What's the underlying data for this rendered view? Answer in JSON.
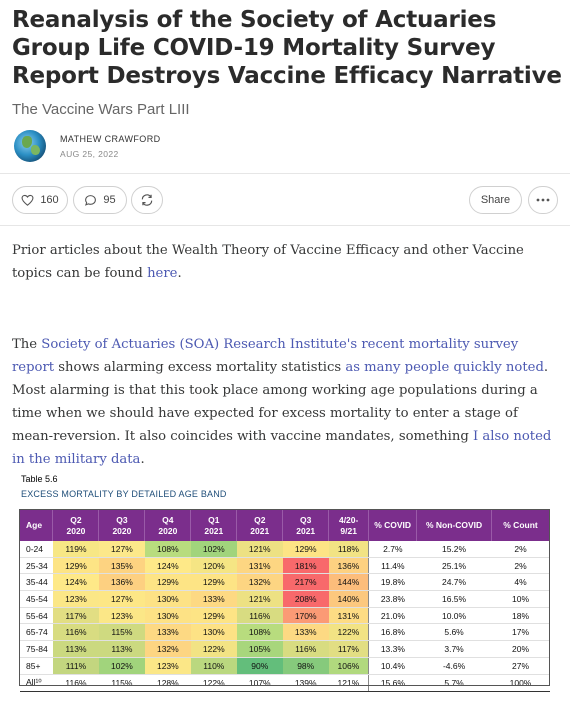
{
  "article": {
    "title": "Reanalysis of the Society of Actuaries Group Life COVID-19 Mortality Survey Report Destroys Vaccine Efficacy Narrative",
    "subtitle": "The Vaccine Wars Part LIII",
    "author": "MATHEW CRAWFORD",
    "date": "AUG 25, 2022"
  },
  "actions": {
    "likes": "160",
    "comments": "95",
    "share_label": "Share"
  },
  "paragraph1": {
    "text_before": "Prior articles about the Wealth Theory of Vaccine Efficacy and other Vaccine topics can be found ",
    "link": "here",
    "text_after": "."
  },
  "paragraph2": {
    "t1": "The ",
    "link1": "Society of Actuaries (SOA) Research Institute's recent mortality survey report",
    "t2": " shows alarming excess mortality statistics ",
    "link2": "as many people quickly noted",
    "t3": ". Most alarming is that this took place among working age populations during a time when we should have expected for excess mortality to enter a stage of mean-reversion. It also coincides with vaccine mandates, something ",
    "link3": "I also noted in the military data",
    "t4": "."
  },
  "table": {
    "caption": "Table 5.6",
    "subcaption": "EXCESS MORTALITY BY DETAILED AGE BAND",
    "headers": [
      "Age",
      "Q2\n2020",
      "Q3\n2020",
      "Q4\n2020",
      "Q1\n2021",
      "Q2\n2021",
      "Q3\n2021",
      "4/20-\n9/21",
      "% COVID",
      "% Non-COVID",
      "% Count"
    ],
    "rows": [
      {
        "age": "0-24",
        "vals": [
          "119%",
          "127%",
          "108%",
          "102%",
          "121%",
          "129%",
          "118%"
        ],
        "covid": "2.7%",
        "noncovid": "15.2%",
        "count": "2%",
        "colors": [
          "#f7e785",
          "#fce88a",
          "#b8dc7e",
          "#a1d47c",
          "#ede183",
          "#fde485",
          "#f2e384"
        ]
      },
      {
        "age": "25-34",
        "vals": [
          "129%",
          "135%",
          "124%",
          "120%",
          "131%",
          "181%",
          "136%"
        ],
        "covid": "11.4%",
        "noncovid": "25.1%",
        "count": "2%",
        "colors": [
          "#fde485",
          "#fdd381",
          "#fee988",
          "#f5e584",
          "#fdd682",
          "#f8696b",
          "#fdd181"
        ]
      },
      {
        "age": "35-44",
        "vals": [
          "124%",
          "136%",
          "129%",
          "129%",
          "132%",
          "217%",
          "144%"
        ],
        "covid": "19.8%",
        "noncovid": "24.7%",
        "count": "4%",
        "colors": [
          "#fee988",
          "#fdd081",
          "#fde485",
          "#fde485",
          "#fdd582",
          "#f8696b",
          "#fcbd7b"
        ]
      },
      {
        "age": "45-54",
        "vals": [
          "123%",
          "127%",
          "130%",
          "133%",
          "121%",
          "208%",
          "140%"
        ],
        "covid": "23.8%",
        "noncovid": "16.5%",
        "count": "10%",
        "colors": [
          "#fbe787",
          "#fde786",
          "#fde285",
          "#fdd983",
          "#ede183",
          "#f8696b",
          "#fcc87e"
        ]
      },
      {
        "age": "55-64",
        "vals": [
          "117%",
          "123%",
          "130%",
          "129%",
          "116%",
          "170%",
          "131%"
        ],
        "covid": "21.0%",
        "noncovid": "10.0%",
        "count": "18%",
        "colors": [
          "#e2de83",
          "#fbe787",
          "#fde285",
          "#fde485",
          "#d8dc81",
          "#fb9a75",
          "#fddc84"
        ]
      },
      {
        "age": "65-74",
        "vals": [
          "116%",
          "115%",
          "133%",
          "130%",
          "108%",
          "133%",
          "122%"
        ],
        "covid": "16.8%",
        "noncovid": "5.6%",
        "count": "17%",
        "colors": [
          "#d8dc81",
          "#cfda80",
          "#fdd983",
          "#fde285",
          "#b8dc7e",
          "#fdd983",
          "#f2e384"
        ]
      },
      {
        "age": "75-84",
        "vals": [
          "113%",
          "113%",
          "132%",
          "122%",
          "105%",
          "116%",
          "117%"
        ],
        "covid": "13.3%",
        "noncovid": "3.7%",
        "count": "20%",
        "colors": [
          "#cbd980",
          "#cbd980",
          "#fdd582",
          "#f2e384",
          "#a8d67c",
          "#d8dc81",
          "#e2de83"
        ]
      },
      {
        "age": "85+",
        "vals": [
          "111%",
          "102%",
          "123%",
          "110%",
          "90%",
          "98%",
          "106%"
        ],
        "covid": "10.4%",
        "noncovid": "-4.6%",
        "count": "27%",
        "colors": [
          "#c3d67f",
          "#a1d47c",
          "#fbe787",
          "#bad87f",
          "#63be7b",
          "#86ca7c",
          "#b1d97e"
        ]
      }
    ],
    "all_row": {
      "age": "All¹⁰",
      "vals": [
        "116%",
        "115%",
        "128%",
        "122%",
        "107%",
        "139%",
        "121%"
      ],
      "covid": "15.6%",
      "noncovid": "5.7%",
      "count": "100%"
    }
  }
}
